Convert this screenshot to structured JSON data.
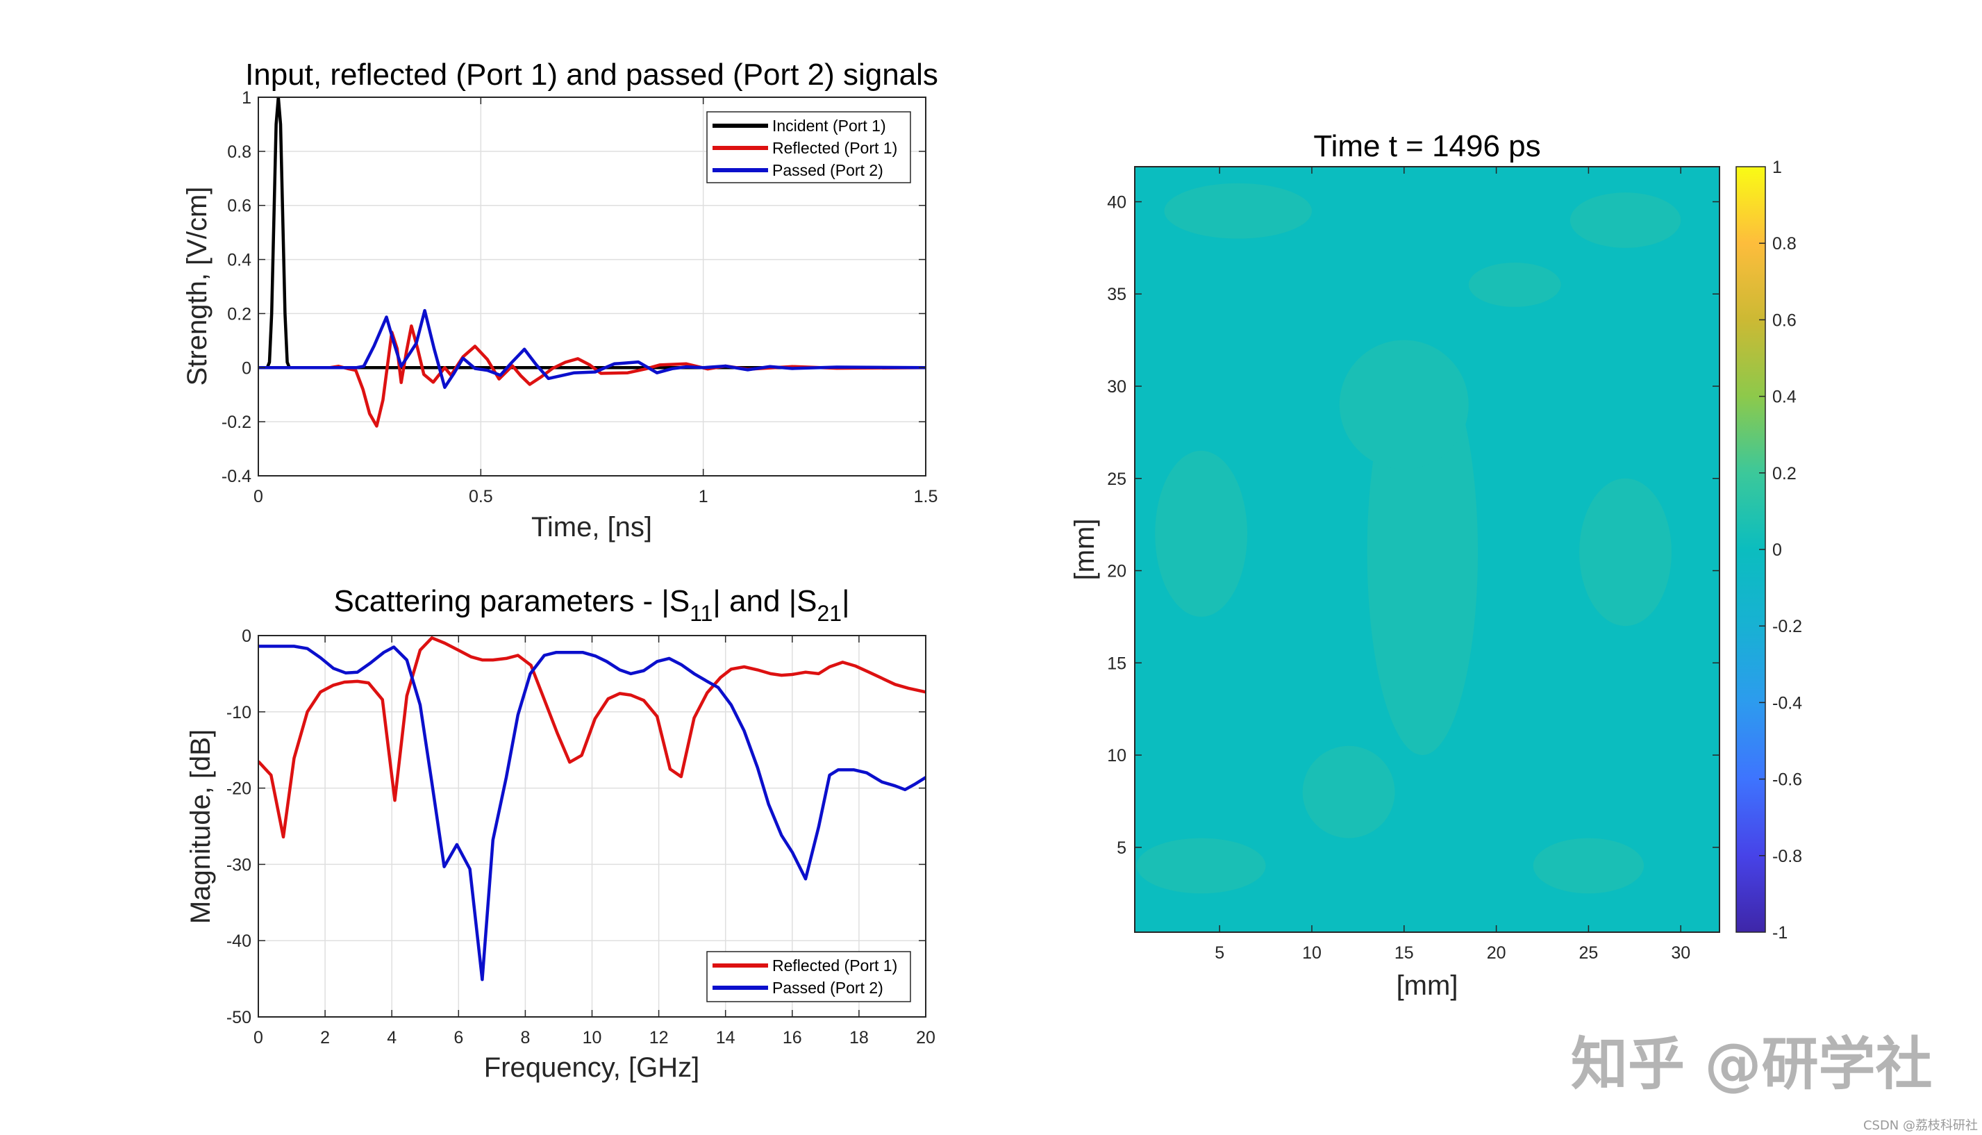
{
  "chart_data": [
    {
      "id": "signals",
      "type": "line",
      "title": "Input, reflected (Port 1) and passed (Port 2) signals",
      "xlabel": "Time, [ns]",
      "ylabel": "Strength, [V/cm]",
      "xlim": [
        0,
        1.5
      ],
      "ylim": [
        -0.4,
        1
      ],
      "xticks": [
        0,
        0.5,
        1,
        1.5
      ],
      "xtick_labels": [
        "0",
        "0.5",
        "1",
        "1.5"
      ],
      "yticks": [
        -0.4,
        -0.2,
        0,
        0.2,
        0.4,
        0.6,
        0.8,
        1
      ],
      "ytick_labels": [
        "-0.4",
        "-0.2",
        "0",
        "0.2",
        "0.4",
        "0.6",
        "0.8",
        "1"
      ],
      "grid": true,
      "legend_position": "top-right",
      "series": [
        {
          "name": "Incident (Port 1)",
          "color": "#000000",
          "x": [
            0,
            0.02,
            0.025,
            0.03,
            0.035,
            0.04,
            0.045,
            0.05,
            0.055,
            0.06,
            0.065,
            0.07,
            1.5
          ],
          "y": [
            0,
            0,
            0.02,
            0.2,
            0.55,
            0.9,
            1.0,
            0.9,
            0.55,
            0.2,
            0.02,
            0,
            0
          ]
        },
        {
          "name": "Reflected (Port 1)",
          "color": "#DD1111",
          "x": [
            0,
            0.16,
            0.18,
            0.2,
            0.219,
            0.235,
            0.25,
            0.266,
            0.28,
            0.3,
            0.312,
            0.321,
            0.333,
            0.344,
            0.358,
            0.372,
            0.393,
            0.419,
            0.433,
            0.46,
            0.487,
            0.515,
            0.541,
            0.571,
            0.59,
            0.61,
            0.635,
            0.661,
            0.69,
            0.718,
            0.745,
            0.77,
            0.83,
            0.87,
            0.902,
            0.962,
            1.01,
            1.05,
            1.1,
            1.2,
            1.3,
            1.5
          ],
          "y": [
            0,
            0,
            0.005,
            -0.003,
            -0.01,
            -0.08,
            -0.17,
            -0.216,
            -0.12,
            0.131,
            0.07,
            -0.055,
            0.06,
            0.154,
            0.07,
            -0.025,
            -0.054,
            0,
            -0.028,
            0.04,
            0.079,
            0.03,
            -0.042,
            0.007,
            -0.03,
            -0.062,
            -0.035,
            -0.003,
            0.02,
            0.033,
            0.01,
            -0.021,
            -0.019,
            -0.005,
            0.01,
            0.014,
            -0.005,
            0.006,
            -0.006,
            0.004,
            -0.002,
            0
          ]
        },
        {
          "name": "Passed (Port 2)",
          "color": "#0B0FCC",
          "x": [
            0,
            0.22,
            0.237,
            0.26,
            0.288,
            0.305,
            0.321,
            0.342,
            0.355,
            0.374,
            0.395,
            0.419,
            0.44,
            0.46,
            0.487,
            0.515,
            0.544,
            0.57,
            0.598,
            0.625,
            0.652,
            0.71,
            0.757,
            0.8,
            0.854,
            0.896,
            0.93,
            0.962,
            1.0,
            1.05,
            1.1,
            1.15,
            1.2,
            1.3,
            1.5
          ],
          "y": [
            0,
            0,
            0.005,
            0.08,
            0.187,
            0.09,
            0.005,
            0.057,
            0.09,
            0.211,
            0.07,
            -0.073,
            -0.02,
            0.035,
            -0.003,
            -0.01,
            -0.028,
            0.02,
            0.068,
            0.01,
            -0.04,
            -0.019,
            -0.016,
            0.014,
            0.021,
            -0.019,
            -0.004,
            0.003,
            0.0,
            0.006,
            -0.008,
            0.004,
            -0.003,
            0.002,
            0
          ]
        }
      ]
    },
    {
      "id": "sparams",
      "type": "line",
      "title": "Scattering parameters - |S11| and |S21|",
      "title_parts": {
        "before": "Scattering parameters - |S",
        "sub1": "11",
        "mid": "| and |S",
        "sub2": "21",
        "after": "|"
      },
      "xlabel": "Frequency, [GHz]",
      "ylabel": "Magnitude, [dB]",
      "xlim": [
        0,
        20
      ],
      "ylim": [
        -50,
        0
      ],
      "xticks": [
        0,
        2,
        4,
        6,
        8,
        10,
        12,
        14,
        16,
        18,
        20
      ],
      "xtick_labels": [
        "0",
        "2",
        "4",
        "6",
        "8",
        "10",
        "12",
        "14",
        "16",
        "18",
        "20"
      ],
      "yticks": [
        -50,
        -40,
        -30,
        -20,
        -10,
        0
      ],
      "ytick_labels": [
        "-50",
        "-40",
        "-30",
        "-20",
        "-10",
        "0"
      ],
      "grid": true,
      "legend_position": "bottom-right",
      "series": [
        {
          "name": "Reflected (Port 1)",
          "color": "#DD1111",
          "x": [
            0,
            0.38,
            0.75,
            1.07,
            1.47,
            1.86,
            2.25,
            2.58,
            2.97,
            3.3,
            3.72,
            4.09,
            4.45,
            4.85,
            5.2,
            5.59,
            5.99,
            6.38,
            6.71,
            7.03,
            7.43,
            7.78,
            8.17,
            8.57,
            8.96,
            9.33,
            9.69,
            10.09,
            10.48,
            10.83,
            11.16,
            11.55,
            11.95,
            12.34,
            12.67,
            13.06,
            13.45,
            13.85,
            14.17,
            14.56,
            14.96,
            15.35,
            15.68,
            16.0,
            16.4,
            16.79,
            17.12,
            17.51,
            17.9,
            18.3,
            18.69,
            19.08,
            19.48,
            20
          ],
          "y": [
            -16.5,
            -18.3,
            -26.4,
            -16.1,
            -10.0,
            -7.4,
            -6.5,
            -6.1,
            -6.0,
            -6.2,
            -8.4,
            -21.6,
            -7.9,
            -1.9,
            -0.3,
            -1.0,
            -1.9,
            -2.8,
            -3.2,
            -3.2,
            -3.0,
            -2.6,
            -3.9,
            -8.4,
            -12.8,
            -16.6,
            -15.7,
            -10.9,
            -8.3,
            -7.6,
            -7.8,
            -8.5,
            -10.6,
            -17.5,
            -18.5,
            -10.8,
            -7.5,
            -5.5,
            -4.4,
            -4.1,
            -4.5,
            -5.0,
            -5.2,
            -5.1,
            -4.8,
            -5.0,
            -4.1,
            -3.5,
            -4.0,
            -4.8,
            -5.6,
            -6.4,
            -6.9,
            -7.4
          ]
        },
        {
          "name": "Passed (Port 2)",
          "color": "#0B0FCC",
          "x": [
            0,
            1.07,
            1.47,
            1.86,
            2.25,
            2.62,
            2.97,
            3.36,
            3.76,
            4.06,
            4.45,
            4.85,
            5.2,
            5.57,
            5.95,
            6.34,
            6.71,
            7.03,
            7.43,
            7.78,
            8.15,
            8.57,
            8.93,
            9.33,
            9.72,
            10.11,
            10.44,
            10.83,
            11.16,
            11.55,
            11.95,
            12.31,
            12.67,
            13.06,
            13.45,
            13.78,
            14.17,
            14.56,
            14.96,
            15.29,
            15.68,
            16.0,
            16.4,
            16.79,
            17.12,
            17.38,
            17.84,
            18.23,
            18.69,
            19.08,
            19.38,
            19.67,
            20
          ],
          "y": [
            -1.4,
            -1.4,
            -1.7,
            -2.9,
            -4.3,
            -4.9,
            -4.8,
            -3.6,
            -2.2,
            -1.5,
            -3.2,
            -9.1,
            -19.3,
            -30.3,
            -27.4,
            -30.6,
            -45.1,
            -26.8,
            -18.6,
            -10.4,
            -5.0,
            -2.6,
            -2.2,
            -2.2,
            -2.2,
            -2.7,
            -3.4,
            -4.5,
            -5.0,
            -4.6,
            -3.4,
            -3.0,
            -3.8,
            -5.0,
            -6.0,
            -6.8,
            -9.1,
            -12.5,
            -17.3,
            -22.1,
            -26.2,
            -28.4,
            -31.9,
            -25.1,
            -18.3,
            -17.6,
            -17.6,
            -18.0,
            -19.2,
            -19.7,
            -20.2,
            -19.5,
            -18.6
          ]
        }
      ]
    },
    {
      "id": "field",
      "type": "heatmap",
      "title": "Time t = 1496 ps",
      "xlabel": "[mm]",
      "ylabel": "[mm]",
      "xlim": [
        0.4,
        32.1
      ],
      "ylim": [
        0.4,
        41.9
      ],
      "xticks": [
        5,
        10,
        15,
        20,
        25,
        30
      ],
      "xtick_labels": [
        "5",
        "10",
        "15",
        "20",
        "25",
        "30"
      ],
      "yticks": [
        5,
        10,
        15,
        20,
        25,
        30,
        35,
        40
      ],
      "ytick_labels": [
        "5",
        "10",
        "15",
        "20",
        "25",
        "30",
        "35",
        "40"
      ],
      "value_range": [
        -1,
        1
      ],
      "colormap": "parula",
      "field_value_approx": 0,
      "base_color": "#0BBDBF",
      "patch_color": "#1ABFB5",
      "patches_mm": [
        {
          "cx": 16.0,
          "cy": 21.0,
          "rx": 3.0,
          "ry": 11.0
        },
        {
          "cx": 15.0,
          "cy": 29.0,
          "rx": 3.5,
          "ry": 3.5
        },
        {
          "cx": 4.0,
          "cy": 22.0,
          "rx": 2.5,
          "ry": 4.5
        },
        {
          "cx": 27.0,
          "cy": 21.0,
          "rx": 2.5,
          "ry": 4.0
        },
        {
          "cx": 6.0,
          "cy": 39.5,
          "rx": 4.0,
          "ry": 1.5
        },
        {
          "cx": 27.0,
          "cy": 39.0,
          "rx": 3.0,
          "ry": 1.5
        },
        {
          "cx": 4.0,
          "cy": 4.0,
          "rx": 3.5,
          "ry": 1.5
        },
        {
          "cx": 25.0,
          "cy": 4.0,
          "rx": 3.0,
          "ry": 1.5
        },
        {
          "cx": 12.0,
          "cy": 8.0,
          "rx": 2.5,
          "ry": 2.5
        },
        {
          "cx": 21.0,
          "cy": 35.5,
          "rx": 2.5,
          "ry": 1.2
        }
      ],
      "colorbar": {
        "ticks": [
          -1,
          -0.8,
          -0.6,
          -0.4,
          -0.2,
          0,
          0.2,
          0.4,
          0.6,
          0.8,
          1
        ],
        "tick_labels": [
          "-1",
          "-0.8",
          "-0.6",
          "-0.4",
          "-0.2",
          "0",
          "0.2",
          "0.4",
          "0.6",
          "0.8",
          "1"
        ],
        "stops": [
          "#3E26A8",
          "#4743E8",
          "#3E74FE",
          "#2D9BEE",
          "#18B1D3",
          "#0BBDBF",
          "#3CC89A",
          "#8DC94B",
          "#CCB934",
          "#FDBD3C",
          "#F9FB15"
        ]
      }
    }
  ],
  "watermark": {
    "text": "知乎 @研学社",
    "source": "CSDN @荔枝科研社"
  }
}
